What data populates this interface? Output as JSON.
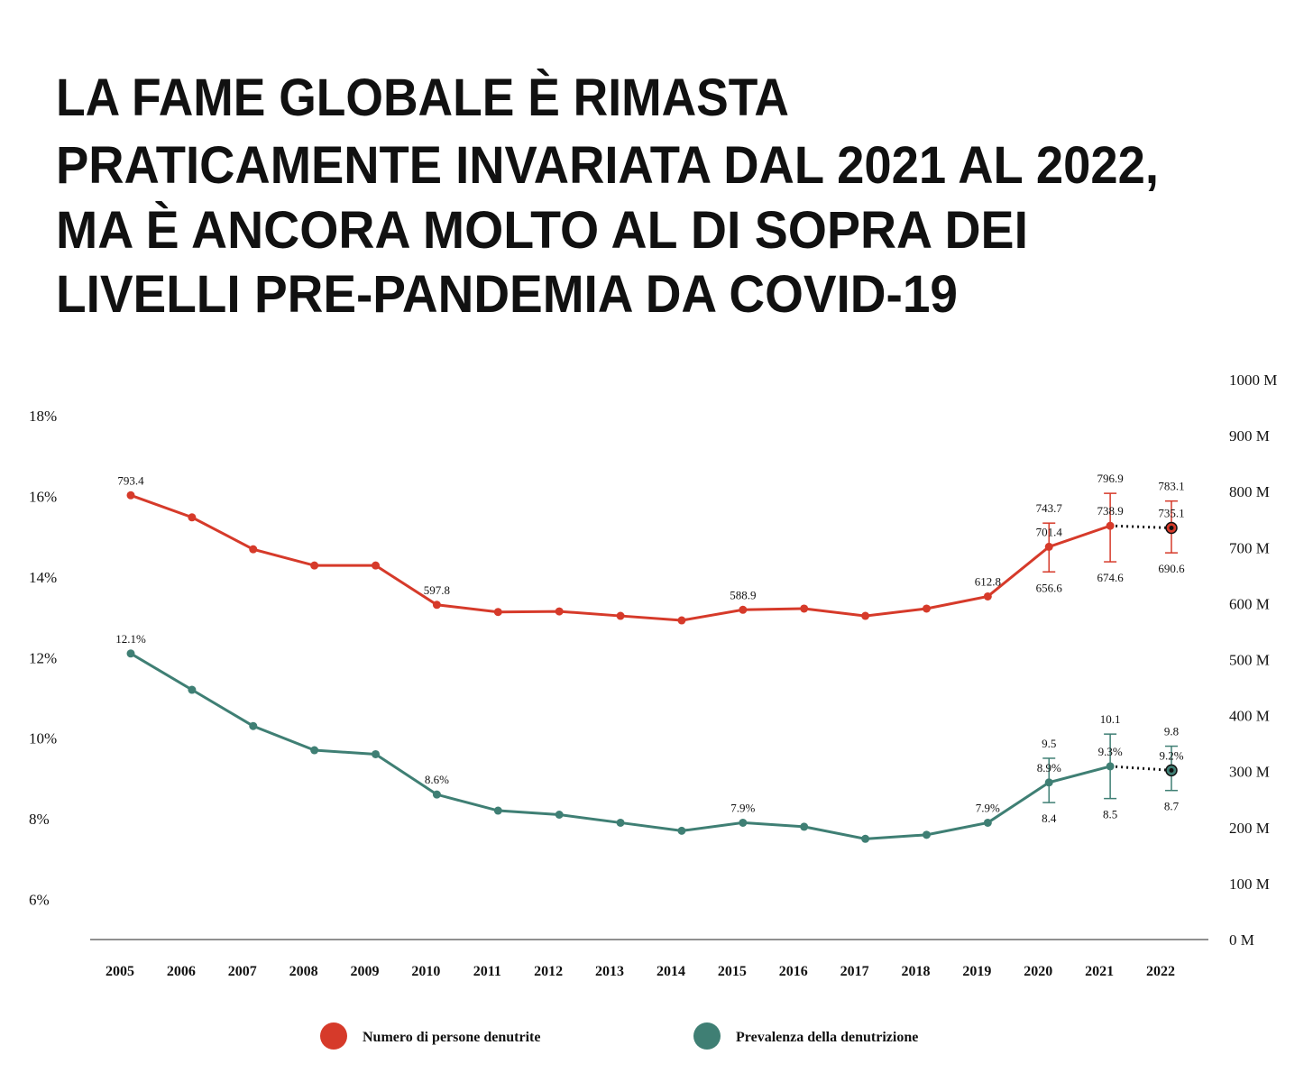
{
  "chart_data": {
    "type": "line",
    "title": [
      "LA FAME GLOBALE È RIMASTA",
      "PRATICAMENTE INVARIATA DAL 2021 AL 2022,",
      "MA È ANCORA MOLTO AL DI SOPRA DEI",
      "LIVELLI PRE-PANDEMIA DA COVID-19"
    ],
    "categories": [
      "2005",
      "2006",
      "2007",
      "2008",
      "2009",
      "2010",
      "2011",
      "2012",
      "2013",
      "2014",
      "2015",
      "2016",
      "2017",
      "2018",
      "2019",
      "2020",
      "2021",
      "2022"
    ],
    "ylim": [
      5,
      18.9
    ],
    "yticks": [
      {
        "value": 6,
        "label": "6%"
      },
      {
        "value": 8,
        "label": "8%"
      },
      {
        "value": 10,
        "label": "10%"
      },
      {
        "value": 12,
        "label": "12%"
      },
      {
        "value": 14,
        "label": "14%"
      },
      {
        "value": 16,
        "label": "16%"
      },
      {
        "value": 18,
        "label": "18%"
      }
    ],
    "y2lim": [
      0,
      1000
    ],
    "y2ticks": [
      {
        "value": 0,
        "label": "0 M"
      },
      {
        "value": 100,
        "label": "100 M"
      },
      {
        "value": 200,
        "label": "200 M"
      },
      {
        "value": 300,
        "label": "300 M"
      },
      {
        "value": 400,
        "label": "400 M"
      },
      {
        "value": 500,
        "label": "500 M"
      },
      {
        "value": 600,
        "label": "600 M"
      },
      {
        "value": 700,
        "label": "700 M"
      },
      {
        "value": 800,
        "label": "800 M"
      },
      {
        "value": 900,
        "label": "900 M"
      },
      {
        "value": 1000,
        "label": "1000 M"
      }
    ],
    "series": [
      {
        "name": "Numero di persone denutrite",
        "color": "#d63a2a",
        "axis": "y2",
        "values": [
          793.4,
          754,
          697,
          668,
          668,
          597.8,
          585,
          586,
          578,
          570,
          588.9,
          591,
          578,
          591,
          612.8,
          701.4,
          738.9,
          735.1
        ],
        "value_labels": [
          "793.4",
          null,
          null,
          null,
          null,
          "597.8",
          null,
          null,
          null,
          null,
          "588.9",
          null,
          null,
          null,
          "612.8",
          "701.4",
          "738.9",
          "735.1"
        ],
        "upper": [
          null,
          null,
          null,
          null,
          null,
          null,
          null,
          null,
          null,
          null,
          null,
          null,
          null,
          null,
          null,
          743.7,
          796.9,
          783.1
        ],
        "lower": [
          null,
          null,
          null,
          null,
          null,
          null,
          null,
          null,
          null,
          null,
          null,
          null,
          null,
          null,
          null,
          656.6,
          674.6,
          690.6
        ]
      },
      {
        "name": "Prevalenza della denutrizione",
        "color": "#3f7f74",
        "values": [
          12.1,
          11.2,
          10.3,
          9.7,
          9.6,
          8.6,
          8.2,
          8.1,
          7.9,
          7.7,
          7.9,
          7.8,
          7.5,
          7.6,
          7.9,
          8.9,
          9.3,
          9.2
        ],
        "value_labels": [
          "12.1%",
          null,
          null,
          null,
          null,
          "8.6%",
          null,
          null,
          null,
          null,
          "7.9%",
          null,
          null,
          null,
          "7.9%",
          "8.9%",
          "9.3%",
          "9.2%"
        ],
        "upper": [
          null,
          null,
          null,
          null,
          null,
          null,
          null,
          null,
          null,
          null,
          null,
          null,
          null,
          null,
          null,
          9.5,
          10.1,
          9.8
        ],
        "lower": [
          null,
          null,
          null,
          null,
          null,
          null,
          null,
          null,
          null,
          null,
          null,
          null,
          null,
          null,
          null,
          8.4,
          8.5,
          8.7
        ]
      }
    ]
  }
}
